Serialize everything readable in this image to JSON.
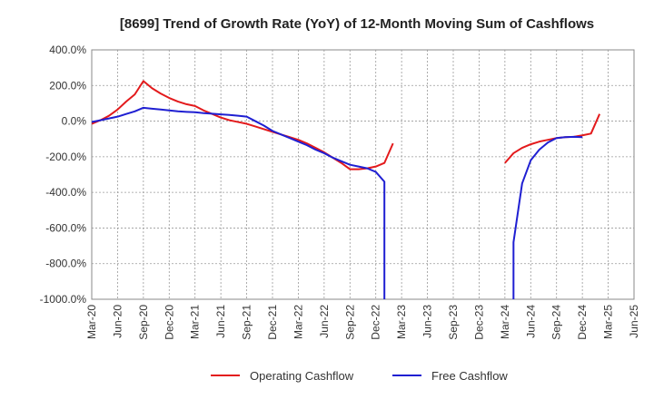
{
  "chart_data": {
    "type": "line",
    "title": "[8699]  Trend of Growth Rate (YoY) of 12-Month Moving Sum of Cashflows",
    "ylim": [
      -1000,
      400
    ],
    "y_ticks": [
      400,
      200,
      0,
      -200,
      -400,
      -600,
      -800,
      -1000
    ],
    "y_tick_labels": [
      "400.0%",
      "200.0%",
      "0.0%",
      "-200.0%",
      "-400.0%",
      "-600.0%",
      "-800.0%",
      "-1000.0%"
    ],
    "x_ticks": [
      "Mar-20",
      "Jun-20",
      "Sep-20",
      "Dec-20",
      "Mar-21",
      "Jun-21",
      "Sep-21",
      "Dec-21",
      "Mar-22",
      "Jun-22",
      "Sep-22",
      "Dec-22",
      "Mar-23",
      "Jun-23",
      "Sep-23",
      "Dec-23",
      "Mar-24",
      "Jun-24",
      "Sep-24",
      "Dec-24",
      "Mar-25",
      "Jun-25"
    ],
    "grid": true,
    "legend_position": "bottom",
    "series": [
      {
        "name": "Operating Cashflow",
        "color": "#e31a1c",
        "points": [
          [
            "2020-03",
            -15
          ],
          [
            "2020-04",
            5
          ],
          [
            "2020-05",
            30
          ],
          [
            "2020-06",
            65
          ],
          [
            "2020-07",
            110
          ],
          [
            "2020-08",
            150
          ],
          [
            "2020-09",
            225
          ],
          [
            "2020-10",
            185
          ],
          [
            "2020-11",
            155
          ],
          [
            "2020-12",
            130
          ],
          [
            "2021-01",
            110
          ],
          [
            "2021-02",
            95
          ],
          [
            "2021-03",
            85
          ],
          [
            "2021-04",
            60
          ],
          [
            "2021-05",
            40
          ],
          [
            "2021-06",
            20
          ],
          [
            "2021-07",
            5
          ],
          [
            "2021-08",
            -5
          ],
          [
            "2021-09",
            -15
          ],
          [
            "2021-10",
            -30
          ],
          [
            "2021-11",
            -45
          ],
          [
            "2021-12",
            -60
          ],
          [
            "2022-01",
            -75
          ],
          [
            "2022-02",
            -90
          ],
          [
            "2022-03",
            -105
          ],
          [
            "2022-04",
            -125
          ],
          [
            "2022-05",
            -150
          ],
          [
            "2022-06",
            -175
          ],
          [
            "2022-07",
            -205
          ],
          [
            "2022-08",
            -235
          ],
          [
            "2022-09",
            -270
          ],
          [
            "2022-10",
            -270
          ],
          [
            "2022-11",
            -265
          ],
          [
            "2022-12",
            -255
          ],
          [
            "2023-01",
            -235
          ],
          [
            "2023-02",
            -125
          ],
          null,
          [
            "2024-03",
            -235
          ],
          [
            "2024-04",
            -180
          ],
          [
            "2024-05",
            -150
          ],
          [
            "2024-06",
            -130
          ],
          [
            "2024-07",
            -115
          ],
          [
            "2024-08",
            -105
          ],
          [
            "2024-09",
            -95
          ],
          [
            "2024-10",
            -90
          ],
          [
            "2024-11",
            -88
          ],
          [
            "2024-12",
            -80
          ],
          [
            "2025-01",
            -70
          ],
          [
            "2025-02",
            40
          ]
        ]
      },
      {
        "name": "Free Cashflow",
        "color": "#1f1fd2",
        "points": [
          [
            "2020-03",
            -5
          ],
          [
            "2020-04",
            5
          ],
          [
            "2020-05",
            15
          ],
          [
            "2020-06",
            25
          ],
          [
            "2020-07",
            40
          ],
          [
            "2020-08",
            55
          ],
          [
            "2020-09",
            75
          ],
          [
            "2020-10",
            70
          ],
          [
            "2020-11",
            65
          ],
          [
            "2020-12",
            60
          ],
          [
            "2021-01",
            55
          ],
          [
            "2021-02",
            52
          ],
          [
            "2021-03",
            50
          ],
          [
            "2021-04",
            45
          ],
          [
            "2021-05",
            42
          ],
          [
            "2021-06",
            38
          ],
          [
            "2021-07",
            35
          ],
          [
            "2021-08",
            30
          ],
          [
            "2021-09",
            25
          ],
          [
            "2021-10",
            0
          ],
          [
            "2021-11",
            -25
          ],
          [
            "2021-12",
            -55
          ],
          [
            "2022-01",
            -75
          ],
          [
            "2022-02",
            -95
          ],
          [
            "2022-03",
            -115
          ],
          [
            "2022-04",
            -135
          ],
          [
            "2022-05",
            -160
          ],
          [
            "2022-06",
            -180
          ],
          [
            "2022-07",
            -205
          ],
          [
            "2022-08",
            -225
          ],
          [
            "2022-09",
            -245
          ],
          [
            "2022-10",
            -255
          ],
          [
            "2022-11",
            -265
          ],
          [
            "2022-12",
            -285
          ],
          [
            "2023-01",
            -340
          ],
          [
            "2023-01",
            -1000
          ],
          null,
          [
            "2024-04",
            -1000
          ],
          [
            "2024-04",
            -680
          ],
          [
            "2024-05",
            -350
          ],
          [
            "2024-06",
            -220
          ],
          [
            "2024-07",
            -160
          ],
          [
            "2024-08",
            -120
          ],
          [
            "2024-09",
            -95
          ],
          [
            "2024-10",
            -90
          ],
          [
            "2024-11",
            -88
          ],
          [
            "2024-12",
            -90
          ]
        ]
      }
    ]
  }
}
